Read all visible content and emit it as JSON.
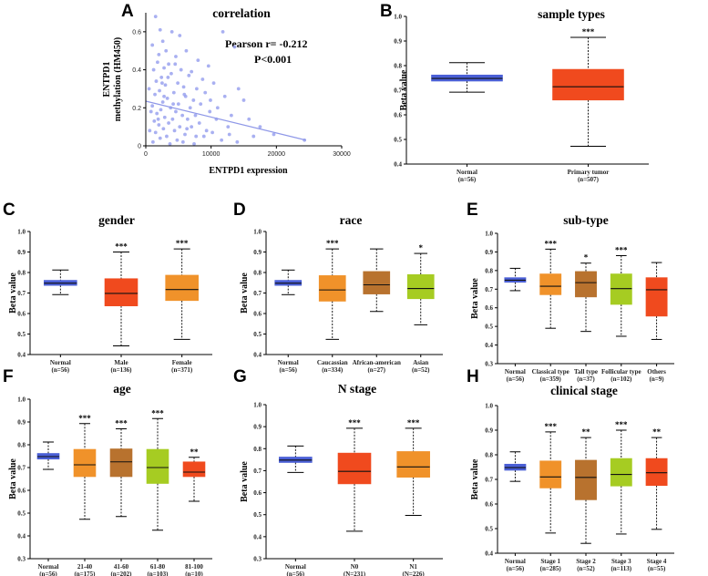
{
  "colors": {
    "blue": "#4a5fd6",
    "red": "#f04a1e",
    "orange": "#f0922a",
    "brown": "#b8722e",
    "green": "#a6cc22",
    "scatter": "#9aa2ee",
    "fit": "#8f98e8"
  },
  "scatter_panel": {
    "letter": "A",
    "title": "correlation",
    "pearson": "Pearson r= -0.212",
    "pvalue": "P<0.001"
  },
  "chart_data": [
    {
      "id": "A",
      "type": "scatter",
      "title": "correlation",
      "xlabel": "ENTPD1 expression",
      "ylabel_lines": [
        "ENTPD1",
        "methylation (HM450)"
      ],
      "xlim": [
        0,
        30000
      ],
      "ylim": [
        0,
        0.7
      ],
      "xticks": [
        0,
        10000,
        20000,
        30000
      ],
      "yticks": [
        0.0,
        0.2,
        0.4,
        0.6
      ],
      "fit_line": {
        "x": [
          0,
          24500
        ],
        "y": [
          0.235,
          0.03
        ]
      },
      "points": [
        [
          1500,
          0.68
        ],
        [
          2200,
          0.61
        ],
        [
          4000,
          0.6
        ],
        [
          5200,
          0.58
        ],
        [
          2600,
          0.55
        ],
        [
          1000,
          0.53
        ],
        [
          3100,
          0.5
        ],
        [
          6200,
          0.5
        ],
        [
          2000,
          0.48
        ],
        [
          4600,
          0.47
        ],
        [
          8000,
          0.45
        ],
        [
          1800,
          0.44
        ],
        [
          3500,
          0.43
        ],
        [
          9600,
          0.42
        ],
        [
          2800,
          0.41
        ],
        [
          5400,
          0.4
        ],
        [
          7000,
          0.39
        ],
        [
          11800,
          0.6
        ],
        [
          13600,
          0.52
        ],
        [
          1200,
          0.4
        ],
        [
          3900,
          0.38
        ],
        [
          6600,
          0.37
        ],
        [
          2400,
          0.36
        ],
        [
          8700,
          0.35
        ],
        [
          1600,
          0.34
        ],
        [
          4900,
          0.33
        ],
        [
          10400,
          0.33
        ],
        [
          3000,
          0.32
        ],
        [
          5800,
          0.31
        ],
        [
          7800,
          0.3
        ],
        [
          14200,
          0.3
        ],
        [
          2100,
          0.29
        ],
        [
          4300,
          0.28
        ],
        [
          9100,
          0.28
        ],
        [
          1400,
          0.27
        ],
        [
          6100,
          0.26
        ],
        [
          12100,
          0.26
        ],
        [
          3300,
          0.25
        ],
        [
          7300,
          0.24
        ],
        [
          15000,
          0.24
        ],
        [
          2600,
          0.23
        ],
        [
          5000,
          0.22
        ],
        [
          8400,
          0.22
        ],
        [
          1000,
          0.21
        ],
        [
          3800,
          0.2
        ],
        [
          6800,
          0.2
        ],
        [
          11000,
          0.2
        ],
        [
          2300,
          0.19
        ],
        [
          4600,
          0.18
        ],
        [
          9800,
          0.18
        ],
        [
          1700,
          0.17
        ],
        [
          5600,
          0.16
        ],
        [
          7600,
          0.16
        ],
        [
          13100,
          0.16
        ],
        [
          2900,
          0.15
        ],
        [
          4100,
          0.14
        ],
        [
          6400,
          0.14
        ],
        [
          10800,
          0.14
        ],
        [
          1300,
          0.13
        ],
        [
          3500,
          0.12
        ],
        [
          8200,
          0.12
        ],
        [
          2000,
          0.11
        ],
        [
          5200,
          0.1
        ],
        [
          7000,
          0.1
        ],
        [
          12600,
          0.1
        ],
        [
          2700,
          0.09
        ],
        [
          4400,
          0.08
        ],
        [
          9300,
          0.08
        ],
        [
          1500,
          0.07
        ],
        [
          6000,
          0.06
        ],
        [
          3200,
          0.05
        ],
        [
          8900,
          0.05
        ],
        [
          16500,
          0.05
        ],
        [
          2200,
          0.04
        ],
        [
          4800,
          0.03
        ],
        [
          11600,
          0.03
        ],
        [
          1100,
          0.02
        ],
        [
          5700,
          0.02
        ],
        [
          3700,
          0.01
        ],
        [
          7400,
          0.01
        ],
        [
          17500,
          0.1
        ],
        [
          19600,
          0.06
        ],
        [
          24300,
          0.03
        ],
        [
          15800,
          0.14
        ],
        [
          500,
          0.3
        ],
        [
          800,
          0.18
        ],
        [
          600,
          0.08
        ],
        [
          2500,
          0.33
        ],
        [
          4200,
          0.22
        ],
        [
          6300,
          0.09
        ],
        [
          10200,
          0.07
        ],
        [
          14000,
          0.02
        ],
        [
          3400,
          0.36
        ],
        [
          2800,
          0.26
        ],
        [
          5900,
          0.27
        ],
        [
          7700,
          0.05
        ],
        [
          9900,
          0.24
        ],
        [
          12800,
          0.06
        ],
        [
          1900,
          0.14
        ],
        [
          4500,
          0.43
        ]
      ]
    },
    {
      "id": "B",
      "type": "box",
      "title": "sample types",
      "ylabel": "Beta value",
      "ylim": [
        0.4,
        1.0
      ],
      "yticks": [
        0.4,
        0.5,
        0.6,
        0.7,
        0.8,
        0.9,
        1.0
      ],
      "groups": [
        {
          "name": "Normal",
          "n": "(n=56)",
          "min": 0.692,
          "q1": 0.737,
          "median": 0.748,
          "q3": 0.762,
          "max": 0.812,
          "color": "blue",
          "sig": ""
        },
        {
          "name": "Primary tumor",
          "n": "(n=507)",
          "min": 0.472,
          "q1": 0.66,
          "median": 0.714,
          "q3": 0.785,
          "max": 0.915,
          "color": "red",
          "sig": "***"
        }
      ]
    },
    {
      "id": "C",
      "type": "box",
      "title": "gender",
      "ylabel": "Beta value",
      "ylim": [
        0.4,
        1.0
      ],
      "yticks": [
        0.4,
        0.5,
        0.6,
        0.7,
        0.8,
        0.9,
        1.0
      ],
      "groups": [
        {
          "name": "Normal",
          "n": "(n=56)",
          "min": 0.692,
          "q1": 0.737,
          "median": 0.748,
          "q3": 0.762,
          "max": 0.812,
          "color": "blue",
          "sig": ""
        },
        {
          "name": "Male",
          "n": "(n=136)",
          "min": 0.442,
          "q1": 0.637,
          "median": 0.698,
          "q3": 0.77,
          "max": 0.9,
          "color": "red",
          "sig": "***"
        },
        {
          "name": "Female",
          "n": "(n=371)",
          "min": 0.474,
          "q1": 0.663,
          "median": 0.717,
          "q3": 0.787,
          "max": 0.915,
          "color": "orange",
          "sig": "***"
        }
      ]
    },
    {
      "id": "D",
      "type": "box",
      "title": "race",
      "ylabel": "Beta value",
      "ylim": [
        0.4,
        1.0
      ],
      "yticks": [
        0.4,
        0.5,
        0.6,
        0.7,
        0.8,
        0.9,
        1.0
      ],
      "groups": [
        {
          "name": "Normal",
          "n": "(n=56)",
          "min": 0.692,
          "q1": 0.737,
          "median": 0.748,
          "q3": 0.762,
          "max": 0.812,
          "color": "blue",
          "sig": ""
        },
        {
          "name": "Caucassian",
          "n": "(n=334)",
          "min": 0.474,
          "q1": 0.66,
          "median": 0.715,
          "q3": 0.785,
          "max": 0.915,
          "color": "orange",
          "sig": "***"
        },
        {
          "name": "African-american",
          "n": "(n=27)",
          "min": 0.61,
          "q1": 0.695,
          "median": 0.74,
          "q3": 0.805,
          "max": 0.915,
          "color": "brown",
          "sig": ""
        },
        {
          "name": "Asian",
          "n": "(n=52)",
          "min": 0.545,
          "q1": 0.672,
          "median": 0.722,
          "q3": 0.79,
          "max": 0.893,
          "color": "green",
          "sig": "*"
        }
      ]
    },
    {
      "id": "E",
      "type": "box",
      "title": "sub-type",
      "ylabel": "Beta value",
      "ylim": [
        0.3,
        1.0
      ],
      "yticks": [
        0.3,
        0.4,
        0.5,
        0.6,
        0.7,
        0.8,
        0.9,
        1.0
      ],
      "groups": [
        {
          "name": "Normal",
          "n": "(n=56)",
          "min": 0.692,
          "q1": 0.737,
          "median": 0.748,
          "q3": 0.762,
          "max": 0.812,
          "color": "blue",
          "sig": ""
        },
        {
          "name": "Classical type",
          "n": "(n=359)",
          "min": 0.49,
          "q1": 0.67,
          "median": 0.716,
          "q3": 0.782,
          "max": 0.915,
          "color": "orange",
          "sig": "***"
        },
        {
          "name": "Tall type",
          "n": "(n=37)",
          "min": 0.473,
          "q1": 0.658,
          "median": 0.735,
          "q3": 0.795,
          "max": 0.84,
          "color": "brown",
          "sig": "*"
        },
        {
          "name": "Follicular type",
          "n": "(n=102)",
          "min": 0.447,
          "q1": 0.618,
          "median": 0.703,
          "q3": 0.782,
          "max": 0.88,
          "color": "green",
          "sig": "***"
        },
        {
          "name": "Others",
          "n": "(n=9)",
          "min": 0.43,
          "q1": 0.555,
          "median": 0.697,
          "q3": 0.762,
          "max": 0.843,
          "color": "red",
          "sig": ""
        }
      ]
    },
    {
      "id": "F",
      "type": "box",
      "title": "age",
      "ylabel": "Beta value",
      "ylim": [
        0.3,
        1.0
      ],
      "yticks": [
        0.3,
        0.4,
        0.5,
        0.6,
        0.7,
        0.8,
        0.9,
        1.0
      ],
      "groups": [
        {
          "name": "Normal",
          "n": "(n=56)",
          "min": 0.692,
          "q1": 0.737,
          "median": 0.748,
          "q3": 0.762,
          "max": 0.812,
          "color": "blue",
          "sig": ""
        },
        {
          "name": "21-40",
          "n": "(n=175)",
          "min": 0.473,
          "q1": 0.66,
          "median": 0.712,
          "q3": 0.78,
          "max": 0.893,
          "color": "orange",
          "sig": "***"
        },
        {
          "name": "41-60",
          "n": "(n=202)",
          "min": 0.485,
          "q1": 0.66,
          "median": 0.725,
          "q3": 0.782,
          "max": 0.87,
          "color": "brown",
          "sig": "***"
        },
        {
          "name": "61-80",
          "n": "(n=103)",
          "min": 0.425,
          "q1": 0.63,
          "median": 0.7,
          "q3": 0.78,
          "max": 0.915,
          "color": "green",
          "sig": "***"
        },
        {
          "name": "81-100",
          "n": "(n=10)",
          "min": 0.552,
          "q1": 0.66,
          "median": 0.68,
          "q3": 0.725,
          "max": 0.745,
          "color": "red",
          "sig": "**"
        }
      ]
    },
    {
      "id": "G",
      "type": "box",
      "title": "N stage",
      "ylabel": "Beta value",
      "ylim": [
        0.3,
        1.0
      ],
      "yticks": [
        0.3,
        0.4,
        0.5,
        0.6,
        0.7,
        0.8,
        0.9,
        1.0
      ],
      "groups": [
        {
          "name": "Normal",
          "n": "(n=56)",
          "min": 0.692,
          "q1": 0.737,
          "median": 0.748,
          "q3": 0.762,
          "max": 0.812,
          "color": "blue",
          "sig": ""
        },
        {
          "name": "N0",
          "n": "(N=231)",
          "min": 0.425,
          "q1": 0.64,
          "median": 0.697,
          "q3": 0.78,
          "max": 0.893,
          "color": "red",
          "sig": "***"
        },
        {
          "name": "N1",
          "n": "(N=226)",
          "min": 0.497,
          "q1": 0.67,
          "median": 0.717,
          "q3": 0.787,
          "max": 0.893,
          "color": "orange",
          "sig": "***"
        }
      ]
    },
    {
      "id": "H",
      "type": "box",
      "title": "clinical stage",
      "ylabel": "Beta value",
      "ylim": [
        0.4,
        1.0
      ],
      "yticks": [
        0.4,
        0.5,
        0.6,
        0.7,
        0.8,
        0.9,
        1.0
      ],
      "groups": [
        {
          "name": "Normal",
          "n": "(n=56)",
          "min": 0.692,
          "q1": 0.737,
          "median": 0.748,
          "q3": 0.762,
          "max": 0.812,
          "color": "blue",
          "sig": ""
        },
        {
          "name": "Stage 1",
          "n": "(n=285)",
          "min": 0.482,
          "q1": 0.665,
          "median": 0.71,
          "q3": 0.775,
          "max": 0.893,
          "color": "orange",
          "sig": "***"
        },
        {
          "name": "Stage 2",
          "n": "(n=52)",
          "min": 0.44,
          "q1": 0.617,
          "median": 0.708,
          "q3": 0.778,
          "max": 0.87,
          "color": "brown",
          "sig": "**"
        },
        {
          "name": "Stage 3",
          "n": "(n=113)",
          "min": 0.478,
          "q1": 0.673,
          "median": 0.72,
          "q3": 0.785,
          "max": 0.9,
          "color": "green",
          "sig": "***"
        },
        {
          "name": "Stage 4",
          "n": "(n=55)",
          "min": 0.497,
          "q1": 0.675,
          "median": 0.727,
          "q3": 0.785,
          "max": 0.87,
          "color": "red",
          "sig": "**"
        }
      ]
    }
  ]
}
